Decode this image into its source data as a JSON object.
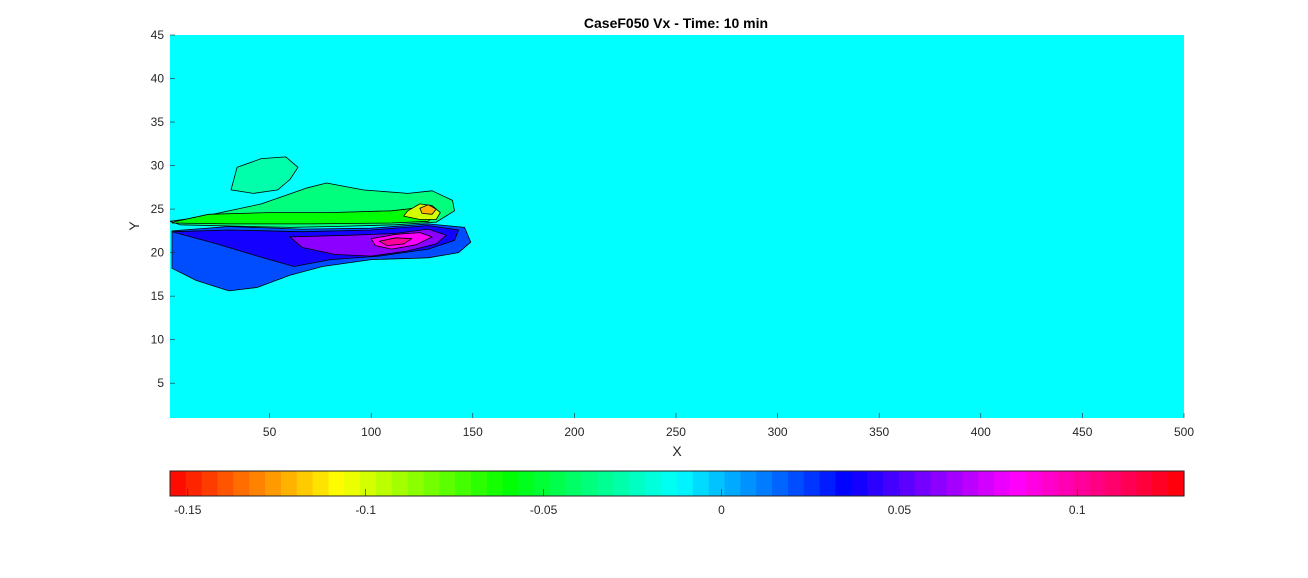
{
  "chart_data": {
    "type": "heatmap",
    "subtype": "filled-contour",
    "title": "CaseF050 Vx - Time: 10 min",
    "xlabel": "X",
    "ylabel": "Y",
    "xlim": [
      1,
      500
    ],
    "ylim": [
      1,
      45
    ],
    "xticks": [
      50,
      100,
      150,
      200,
      250,
      300,
      350,
      400,
      450,
      500
    ],
    "yticks": [
      5,
      10,
      15,
      20,
      25,
      30,
      35,
      40,
      45
    ],
    "background_value": 0,
    "field_regions": [
      {
        "label": "upper-outer",
        "value": -0.035,
        "x": [
          14,
          46,
          68,
          78,
          96,
          118,
          130,
          140,
          141,
          132,
          112,
          82,
          60,
          40,
          6,
          1
        ],
        "y": [
          24.0,
          25.6,
          27.4,
          28.0,
          27.2,
          26.8,
          27.1,
          26.0,
          24.8,
          23.5,
          23.2,
          23.0,
          22.9,
          23.0,
          23.2,
          23.6
        ]
      },
      {
        "label": "upper-lobe",
        "value": -0.03,
        "x": [
          31,
          34,
          46,
          58,
          64,
          60,
          54,
          42
        ],
        "y": [
          27.2,
          29.8,
          30.8,
          31.0,
          29.8,
          28.4,
          27.2,
          26.8
        ]
      },
      {
        "label": "upper-inner",
        "value": -0.06,
        "x": [
          4,
          20,
          50,
          80,
          110,
          125,
          132,
          128,
          110,
          70,
          30,
          2
        ],
        "y": [
          23.6,
          24.4,
          24.6,
          24.6,
          24.8,
          25.2,
          24.4,
          23.6,
          23.4,
          23.3,
          23.3,
          23.4
        ]
      },
      {
        "label": "upper-core",
        "value": -0.1,
        "x": [
          118,
          124,
          130,
          134,
          132,
          124,
          116
        ],
        "y": [
          24.8,
          25.6,
          25.4,
          24.6,
          23.8,
          23.8,
          24.2
        ]
      },
      {
        "label": "upper-peak",
        "value": -0.12,
        "x": [
          124,
          128,
          132,
          130,
          125
        ],
        "y": [
          25.1,
          25.5,
          25.0,
          24.4,
          24.5
        ]
      },
      {
        "label": "lower-outer",
        "value": 0.02,
        "x": [
          2,
          30,
          66,
          100,
          128,
          146,
          149,
          143,
          128,
          100,
          76,
          60,
          44,
          30,
          14,
          2
        ],
        "y": [
          22.5,
          23.0,
          22.7,
          22.8,
          23.3,
          22.9,
          21.2,
          20.0,
          19.4,
          19.2,
          18.4,
          17.4,
          16.0,
          15.6,
          16.8,
          18.2
        ]
      },
      {
        "label": "lower-mid",
        "value": 0.04,
        "x": [
          2,
          30,
          66,
          100,
          128,
          143,
          141,
          128,
          104,
          80,
          62,
          44,
          24
        ],
        "y": [
          22.4,
          22.6,
          22.4,
          22.6,
          23.1,
          22.6,
          21.4,
          20.4,
          19.6,
          19.2,
          18.4,
          19.6,
          21.0
        ]
      },
      {
        "label": "lower-inner",
        "value": 0.06,
        "x": [
          60,
          90,
          112,
          128,
          137,
          132,
          118,
          100,
          82,
          66
        ],
        "y": [
          21.8,
          22.0,
          22.2,
          22.7,
          22.0,
          21.0,
          20.2,
          19.6,
          19.8,
          20.6
        ]
      },
      {
        "label": "lower-core",
        "value": 0.085,
        "x": [
          100,
          112,
          124,
          130,
          122,
          110,
          102
        ],
        "y": [
          21.6,
          22.1,
          22.3,
          21.8,
          20.9,
          20.4,
          20.8
        ]
      },
      {
        "label": "lower-peak",
        "value": 0.1,
        "x": [
          104,
          112,
          120,
          116,
          108
        ],
        "y": [
          21.3,
          21.7,
          21.6,
          21.0,
          20.8
        ]
      }
    ],
    "colorbar": {
      "min": -0.155,
      "max": 0.13,
      "ticks": [
        -0.15,
        -0.1,
        -0.05,
        0,
        0.05,
        0.1
      ],
      "tick_labels": [
        "-0.15",
        "-0.1",
        "-0.05",
        "0",
        "0.05",
        "0.1"
      ],
      "orientation": "horizontal",
      "placement": "below",
      "colormap": "hsv",
      "levels": 64
    },
    "grid": false
  }
}
